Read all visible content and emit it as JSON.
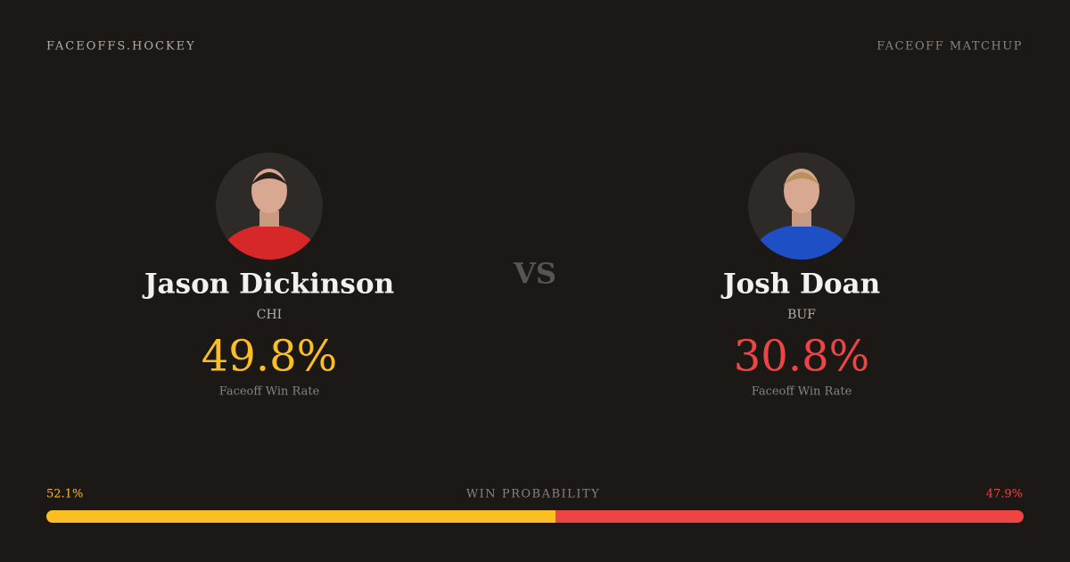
{
  "header": {
    "site": "FACEOFFS.HOCKEY",
    "label": "FACEOFF MATCHUP"
  },
  "players": [
    {
      "name": "Jason Dickinson",
      "team": "CHI",
      "rate": "49.8%",
      "rate_label": "Faceoff Win Rate",
      "color": "#fbbf24",
      "jersey": "#d62828"
    },
    {
      "name": "Josh Doan",
      "team": "BUF",
      "rate": "30.8%",
      "rate_label": "Faceoff Win Rate",
      "color": "#ef4444",
      "jersey": "#1f4fc4"
    }
  ],
  "versus": "VS",
  "win_probability": {
    "title": "WIN PROBABILITY",
    "values": [
      52.1,
      47.9
    ],
    "value_labels": [
      "52.1%",
      "47.9%"
    ],
    "colors": [
      "#fbbf24",
      "#ef4444"
    ]
  }
}
